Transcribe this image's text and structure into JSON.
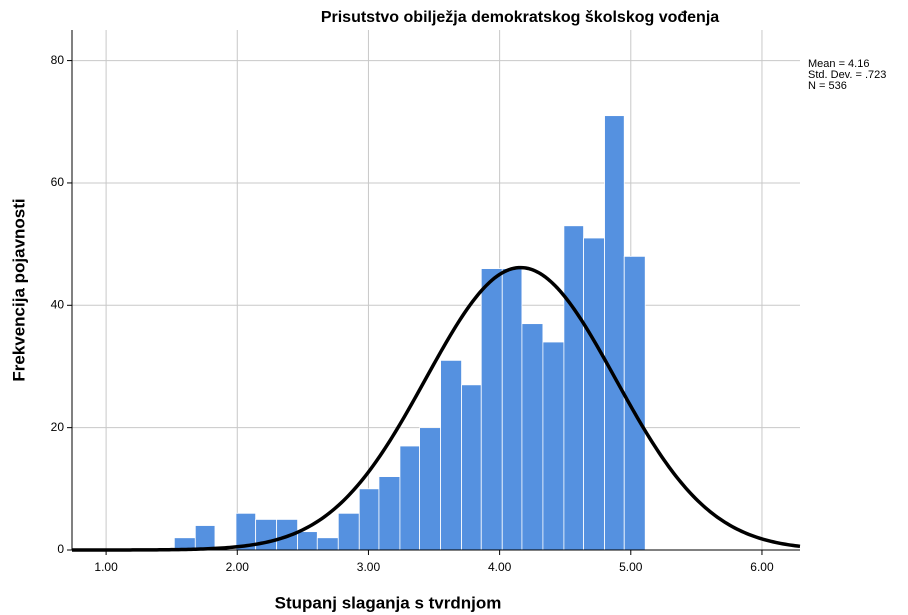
{
  "chart_data": {
    "type": "histogram",
    "title": "Prisutstvo obilježja demokratskog školskog vođenja",
    "x_label": "Stupanj slaganja s tvrdnjom",
    "y_label": "Frekvencija pojavnosti",
    "annotations": [
      "Mean = 4.16",
      "Std. Dev. = .723",
      "N = 536"
    ],
    "bins": [
      1.52,
      1.68,
      1.83,
      1.99,
      2.14,
      2.3,
      2.46,
      2.61,
      2.77,
      2.93,
      3.08,
      3.24,
      3.39,
      3.55,
      3.71,
      3.86,
      4.02,
      4.17,
      4.33,
      4.49,
      4.64,
      4.8,
      4.95,
      5.11
    ],
    "values": [
      2,
      4,
      0,
      6,
      5,
      5,
      3,
      2,
      6,
      10,
      12,
      17,
      20,
      31,
      27,
      46,
      46,
      37,
      34,
      53,
      51,
      71,
      48
    ],
    "color": "#5591e0",
    "normal_curve": {
      "mean": 4.16,
      "sd": 0.723,
      "n": 536,
      "color": "#000000"
    },
    "xlim": [
      0.74,
      6.29
    ],
    "ylim": [
      0,
      85
    ],
    "xticks": [
      {
        "value": 1,
        "label": "1.00"
      },
      {
        "value": 2,
        "label": "2.00"
      },
      {
        "value": 3,
        "label": "3.00"
      },
      {
        "value": 4,
        "label": "4.00"
      },
      {
        "value": 5,
        "label": "5.00"
      },
      {
        "value": 6,
        "label": "6.00"
      }
    ],
    "yticks": [
      0,
      20,
      40,
      60,
      80
    ],
    "grid": true
  }
}
